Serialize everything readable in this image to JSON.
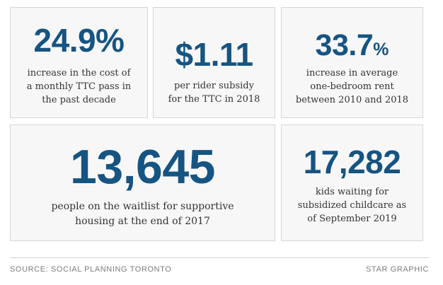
{
  "stats": [
    {
      "value": "24.9%",
      "unit": "",
      "description_lines": [
        "increase in the cost of",
        "a monthly TTC pass in",
        "the past decade"
      ]
    },
    {
      "value": "$1.11",
      "unit": "",
      "description_lines": [
        "per rider subsidy",
        "for the TTC in 2018"
      ]
    },
    {
      "value": "33.7",
      "unit": "%",
      "description_lines": [
        "increase in average",
        "one-bedroom rent",
        "between 2010 and 2018"
      ]
    },
    {
      "value": "13,645",
      "unit": "",
      "description_lines": [
        "people on the waitlist for supportive",
        "housing at the end of 2017"
      ]
    },
    {
      "value": "17,282",
      "unit": "",
      "description_lines": [
        "kids waiting for",
        "subsidized childcare as",
        "of September 2019"
      ]
    }
  ],
  "footer": {
    "source": "SOURCE: SOCIAL PLANNING TORONTO",
    "credit": "STAR GRAPHIC"
  },
  "colors": {
    "stat_blue": "#165482",
    "card_background": "#f7f7f7",
    "card_border": "#d6d6d6",
    "text_dark": "#333333",
    "footer_gray": "#7c7c7c"
  }
}
